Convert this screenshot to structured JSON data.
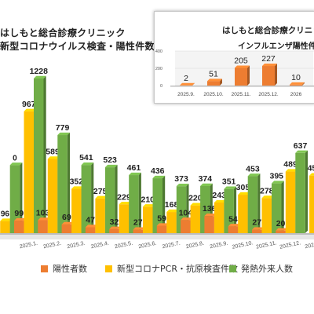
{
  "header": {
    "line1": "はしもと総合診療クリニック",
    "line2": "新型コロナウイルス検査・陽性件数"
  },
  "inset": {
    "line1": "はしもと総合診療クリニック",
    "line2": "インフルエンザ陽性件数"
  },
  "colors": {
    "positive": "#ed7d31",
    "tests": "#ffc000",
    "fever": "#70ad47",
    "influenza": "#ed7d31"
  },
  "chart_data": [
    {
      "type": "bar",
      "categories": [
        "2025.1.",
        "2025.2.",
        "2025.3.",
        "2025.4.",
        "2025.5.",
        "2025.6.",
        "2025.7.",
        "2025.8.",
        "2025.9.",
        "2025.10.",
        "2025.11.",
        "2025.12.",
        "2026.1."
      ],
      "series": [
        {
          "name": "陽性者数",
          "values": [
            99,
            103,
            69,
            47,
            32,
            27,
            59,
            104,
            136,
            54,
            27,
            20,
            null
          ]
        },
        {
          "name": "新型コロナPCR・抗原検査件数",
          "values": [
            967,
            589,
            352,
            275,
            229,
            210,
            168,
            220,
            243,
            305,
            278,
            489,
            457
          ]
        },
        {
          "name": "発熱外来人数",
          "values": [
            1228,
            779,
            541,
            523,
            461,
            436,
            373,
            374,
            351,
            453,
            395,
            637,
            null
          ]
        }
      ],
      "partial_left": {
        "tests_label": "96",
        "fever_label": "0"
      },
      "ylim": [
        0,
        1400
      ]
    },
    {
      "type": "bar",
      "categories": [
        "2025.9.",
        "2025.10.",
        "2025.11.",
        "2025.12.",
        "2026"
      ],
      "values": [
        2,
        51,
        205,
        227,
        10
      ],
      "value_labels": [
        "2",
        "51",
        "205",
        "227",
        "10"
      ],
      "yticks": [
        0,
        200,
        400
      ],
      "ylim": [
        0,
        420
      ]
    }
  ]
}
